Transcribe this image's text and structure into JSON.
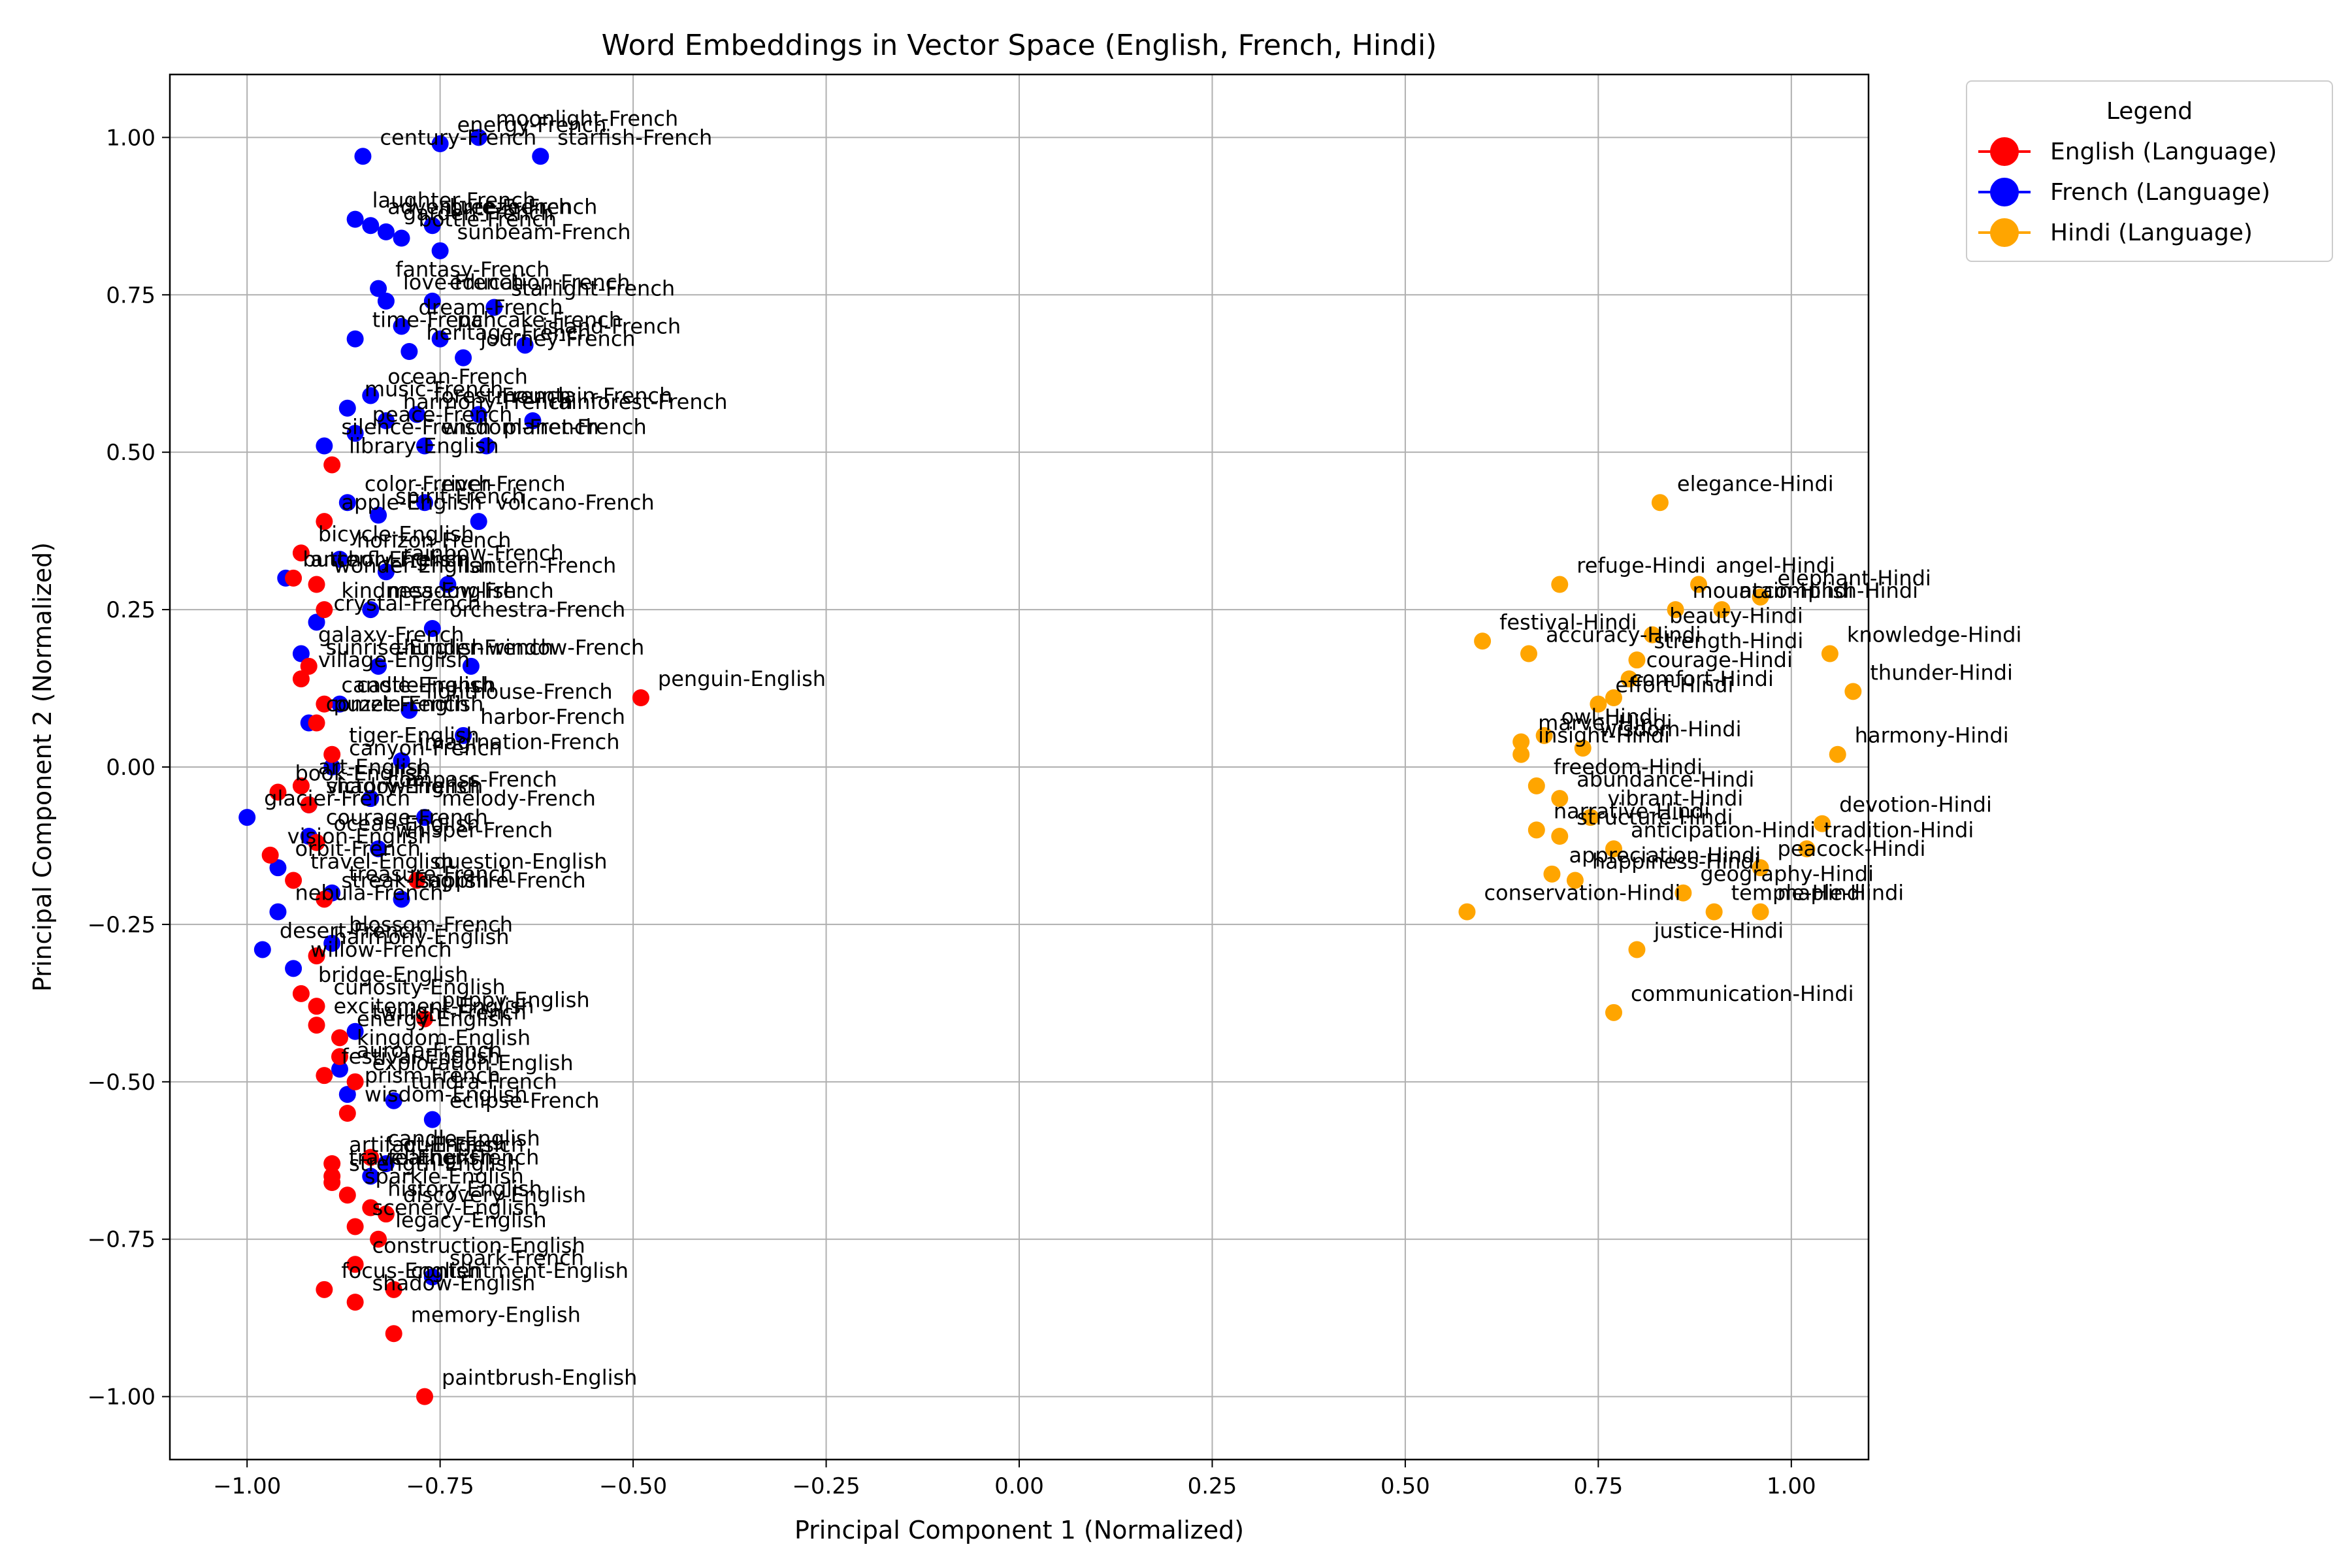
{
  "chart_data": {
    "type": "scatter",
    "title": "Word Embeddings in Vector Space (English, French, Hindi)",
    "xlabel": "Principal Component 1 (Normalized)",
    "ylabel": "Principal Component 2 (Normalized)",
    "xlim": [
      -1.1,
      1.1
    ],
    "ylim": [
      -1.1,
      1.1
    ],
    "xticks": [
      -1.0,
      -0.75,
      -0.5,
      -0.25,
      0.0,
      0.25,
      0.5,
      0.75,
      1.0
    ],
    "xtick_labels": [
      "−1.00",
      "−0.75",
      "−0.50",
      "−0.25",
      "0.00",
      "0.25",
      "0.50",
      "0.75",
      "1.00"
    ],
    "yticks": [
      -1.0,
      -0.75,
      -0.5,
      -0.25,
      0.0,
      0.25,
      0.5,
      0.75,
      1.0
    ],
    "ytick_labels": [
      "−1.00",
      "−0.75",
      "−0.50",
      "−0.25",
      "0.00",
      "0.25",
      "0.50",
      "0.75",
      "1.00"
    ],
    "grid": true,
    "legend": {
      "title": "Legend",
      "placement": "upper-right-outside",
      "entries": [
        "English (Language)",
        "French (Language)",
        "Hindi (Language)"
      ]
    },
    "series": [
      {
        "name": "French (Language)",
        "color": "#0000ff",
        "points": [
          {
            "x": -0.7,
            "y": 1.0,
            "label": "moonlight-French"
          },
          {
            "x": -0.75,
            "y": 0.99,
            "label": "energy-French"
          },
          {
            "x": -0.85,
            "y": 0.97,
            "label": "century-French"
          },
          {
            "x": -0.62,
            "y": 0.97,
            "label": "starfish-French"
          },
          {
            "x": -0.86,
            "y": 0.87,
            "label": "laughter-French"
          },
          {
            "x": -0.84,
            "y": 0.86,
            "label": "adventure-French"
          },
          {
            "x": -0.82,
            "y": 0.85,
            "label": "garden-French"
          },
          {
            "x": -0.8,
            "y": 0.84,
            "label": "bottle-French"
          },
          {
            "x": -0.76,
            "y": 0.86,
            "label": "breeze-French"
          },
          {
            "x": -0.75,
            "y": 0.82,
            "label": "sunbeam-French"
          },
          {
            "x": -0.83,
            "y": 0.76,
            "label": "fantasy-French"
          },
          {
            "x": -0.82,
            "y": 0.74,
            "label": "love-French"
          },
          {
            "x": -0.76,
            "y": 0.74,
            "label": "education-French"
          },
          {
            "x": -0.68,
            "y": 0.73,
            "label": "starlight-French"
          },
          {
            "x": -0.86,
            "y": 0.68,
            "label": "time-French"
          },
          {
            "x": -0.8,
            "y": 0.7,
            "label": "dream-French"
          },
          {
            "x": -0.75,
            "y": 0.68,
            "label": "pancake-French"
          },
          {
            "x": -0.79,
            "y": 0.66,
            "label": "heritage-French"
          },
          {
            "x": -0.72,
            "y": 0.65,
            "label": "journey-French"
          },
          {
            "x": -0.64,
            "y": 0.67,
            "label": "island-French"
          },
          {
            "x": -0.84,
            "y": 0.59,
            "label": "ocean-French"
          },
          {
            "x": -0.87,
            "y": 0.57,
            "label": "music-French"
          },
          {
            "x": -0.82,
            "y": 0.55,
            "label": "harmony-French"
          },
          {
            "x": -0.78,
            "y": 0.56,
            "label": "forest-French"
          },
          {
            "x": -0.7,
            "y": 0.56,
            "label": "mountain-French"
          },
          {
            "x": -0.63,
            "y": 0.55,
            "label": "rainforest-French"
          },
          {
            "x": -0.9,
            "y": 0.51,
            "label": "silence-French"
          },
          {
            "x": -0.86,
            "y": 0.53,
            "label": "peace-French"
          },
          {
            "x": -0.77,
            "y": 0.51,
            "label": "wisdom-French"
          },
          {
            "x": -0.69,
            "y": 0.51,
            "label": "planet-French"
          },
          {
            "x": -0.87,
            "y": 0.42,
            "label": "color-French"
          },
          {
            "x": -0.83,
            "y": 0.4,
            "label": "spirit-French"
          },
          {
            "x": -0.77,
            "y": 0.42,
            "label": "river-French"
          },
          {
            "x": -0.7,
            "y": 0.39,
            "label": "volcano-French"
          },
          {
            "x": -0.88,
            "y": 0.33,
            "label": "horizon-French"
          },
          {
            "x": -0.95,
            "y": 0.3,
            "label": "butterfly-French"
          },
          {
            "x": -0.82,
            "y": 0.31,
            "label": "rainbow-French"
          },
          {
            "x": -0.74,
            "y": 0.29,
            "label": "lantern-French"
          },
          {
            "x": -0.91,
            "y": 0.23,
            "label": "crystal-French"
          },
          {
            "x": -0.84,
            "y": 0.25,
            "label": "meadow-French"
          },
          {
            "x": -0.76,
            "y": 0.22,
            "label": "orchestra-French"
          },
          {
            "x": -0.93,
            "y": 0.18,
            "label": "galaxy-French"
          },
          {
            "x": -0.83,
            "y": 0.16,
            "label": "thunder-French"
          },
          {
            "x": -0.71,
            "y": 0.16,
            "label": "window-French"
          },
          {
            "x": -0.88,
            "y": 0.1,
            "label": "castle-French"
          },
          {
            "x": -0.92,
            "y": 0.07,
            "label": "comet-French"
          },
          {
            "x": -0.79,
            "y": 0.09,
            "label": "lighthouse-French"
          },
          {
            "x": -0.72,
            "y": 0.05,
            "label": "harbor-French"
          },
          {
            "x": -0.89,
            "y": 0.0,
            "label": "canyon-French"
          },
          {
            "x": -0.8,
            "y": 0.01,
            "label": "imagination-French"
          },
          {
            "x": -1.0,
            "y": -0.08,
            "label": "glacier-French"
          },
          {
            "x": -0.92,
            "y": -0.06,
            "label": "shadow-French"
          },
          {
            "x": -0.84,
            "y": -0.05,
            "label": "compass-French"
          },
          {
            "x": -0.77,
            "y": -0.08,
            "label": "melody-French"
          },
          {
            "x": -0.92,
            "y": -0.11,
            "label": "courage-French"
          },
          {
            "x": -0.83,
            "y": -0.13,
            "label": "whisper-French"
          },
          {
            "x": -0.96,
            "y": -0.16,
            "label": "orbit-French"
          },
          {
            "x": -0.89,
            "y": -0.2,
            "label": "treasure-French"
          },
          {
            "x": -0.96,
            "y": -0.23,
            "label": "nebula-French"
          },
          {
            "x": -0.8,
            "y": -0.21,
            "label": "sapphire-French"
          },
          {
            "x": -0.98,
            "y": -0.29,
            "label": "desert-French"
          },
          {
            "x": -0.94,
            "y": -0.32,
            "label": "willow-French"
          },
          {
            "x": -0.89,
            "y": -0.28,
            "label": "blossom-French"
          },
          {
            "x": -0.86,
            "y": -0.42,
            "label": "twilight-French"
          },
          {
            "x": -0.88,
            "y": -0.48,
            "label": "aurora-French"
          },
          {
            "x": -0.87,
            "y": -0.52,
            "label": "prism-French"
          },
          {
            "x": -0.81,
            "y": -0.53,
            "label": "tundra-French"
          },
          {
            "x": -0.76,
            "y": -0.56,
            "label": "eclipse-French"
          },
          {
            "x": -0.82,
            "y": -0.63,
            "label": "quill-French"
          },
          {
            "x": -0.84,
            "y": -0.65,
            "label": "feather-French"
          },
          {
            "x": -0.76,
            "y": -0.81,
            "label": "spark-French"
          }
        ]
      },
      {
        "name": "English (Language)",
        "color": "#ff0000",
        "points": [
          {
            "x": -0.89,
            "y": 0.48,
            "label": "library-English"
          },
          {
            "x": -0.93,
            "y": 0.34,
            "label": "bicycle-English"
          },
          {
            "x": -0.9,
            "y": 0.39,
            "label": "apple-English"
          },
          {
            "x": -0.94,
            "y": 0.3,
            "label": "anchor-English"
          },
          {
            "x": -0.91,
            "y": 0.29,
            "label": "wonder-English"
          },
          {
            "x": -0.9,
            "y": 0.25,
            "label": "kindness-English"
          },
          {
            "x": -0.92,
            "y": 0.16,
            "label": "sunrise-English"
          },
          {
            "x": -0.93,
            "y": 0.14,
            "label": "village-English"
          },
          {
            "x": -0.9,
            "y": 0.1,
            "label": "candle-English"
          },
          {
            "x": -0.91,
            "y": 0.07,
            "label": "puzzle-English"
          },
          {
            "x": -0.89,
            "y": 0.02,
            "label": "tiger-English"
          },
          {
            "x": -0.49,
            "y": 0.11,
            "label": "penguin-English"
          },
          {
            "x": -0.93,
            "y": -0.03,
            "label": "art-English"
          },
          {
            "x": -0.96,
            "y": -0.04,
            "label": "book-English"
          },
          {
            "x": -0.92,
            "y": -0.06,
            "label": "victory-English"
          },
          {
            "x": -0.91,
            "y": -0.12,
            "label": "ocean-English"
          },
          {
            "x": -0.97,
            "y": -0.14,
            "label": "vision-English"
          },
          {
            "x": -0.94,
            "y": -0.18,
            "label": "travel-English"
          },
          {
            "x": -0.9,
            "y": -0.21,
            "label": "streak-English"
          },
          {
            "x": -0.78,
            "y": -0.18,
            "label": "question-English"
          },
          {
            "x": -0.91,
            "y": -0.3,
            "label": "harmony-English"
          },
          {
            "x": -0.93,
            "y": -0.36,
            "label": "bridge-English"
          },
          {
            "x": -0.91,
            "y": -0.38,
            "label": "curiosity-English"
          },
          {
            "x": -0.91,
            "y": -0.41,
            "label": "excitement-English"
          },
          {
            "x": -0.88,
            "y": -0.43,
            "label": "energy-English"
          },
          {
            "x": -0.77,
            "y": -0.4,
            "label": "puppy-English"
          },
          {
            "x": -0.88,
            "y": -0.46,
            "label": "kingdom-English"
          },
          {
            "x": -0.9,
            "y": -0.49,
            "label": "festival-English"
          },
          {
            "x": -0.87,
            "y": -0.55,
            "label": "wisdom-English"
          },
          {
            "x": -0.86,
            "y": -0.5,
            "label": "exploration-English"
          },
          {
            "x": -0.89,
            "y": -0.63,
            "label": "artifact-English"
          },
          {
            "x": -0.84,
            "y": -0.62,
            "label": "candle-English"
          },
          {
            "x": -0.89,
            "y": -0.65,
            "label": "travel-English"
          },
          {
            "x": -0.87,
            "y": -0.68,
            "label": "sparkle-English"
          },
          {
            "x": -0.89,
            "y": -0.66,
            "label": "strength-English"
          },
          {
            "x": -0.84,
            "y": -0.7,
            "label": "history-English"
          },
          {
            "x": -0.82,
            "y": -0.71,
            "label": "discovery-English"
          },
          {
            "x": -0.86,
            "y": -0.73,
            "label": "scenery-English"
          },
          {
            "x": -0.83,
            "y": -0.75,
            "label": "legacy-English"
          },
          {
            "x": -0.86,
            "y": -0.79,
            "label": "construction-English"
          },
          {
            "x": -0.9,
            "y": -0.83,
            "label": "focus-English"
          },
          {
            "x": -0.81,
            "y": -0.83,
            "label": "contentment-English"
          },
          {
            "x": -0.86,
            "y": -0.85,
            "label": "shadow-English"
          },
          {
            "x": -0.81,
            "y": -0.9,
            "label": "memory-English"
          },
          {
            "x": -0.77,
            "y": -1.0,
            "label": "paintbrush-English"
          }
        ]
      },
      {
        "name": "Hindi (Language)",
        "color": "#ffa500",
        "points": [
          {
            "x": 0.83,
            "y": 0.42,
            "label": "elegance-Hindi"
          },
          {
            "x": 0.7,
            "y": 0.29,
            "label": "refuge-Hindi"
          },
          {
            "x": 0.88,
            "y": 0.29,
            "label": "angel-Hindi"
          },
          {
            "x": 0.96,
            "y": 0.27,
            "label": "elephant-Hindi"
          },
          {
            "x": 0.85,
            "y": 0.25,
            "label": "mountain-Hindi"
          },
          {
            "x": 0.91,
            "y": 0.25,
            "label": "accomplish-Hindi"
          },
          {
            "x": 0.6,
            "y": 0.2,
            "label": "festival-Hindi"
          },
          {
            "x": 0.66,
            "y": 0.18,
            "label": "accuracy-Hindi"
          },
          {
            "x": 0.82,
            "y": 0.21,
            "label": "beauty-Hindi"
          },
          {
            "x": 0.8,
            "y": 0.17,
            "label": "strength-Hindi"
          },
          {
            "x": 0.79,
            "y": 0.14,
            "label": "courage-Hindi"
          },
          {
            "x": 0.77,
            "y": 0.11,
            "label": "comfort-Hindi"
          },
          {
            "x": 0.75,
            "y": 0.1,
            "label": "effort-Hindi"
          },
          {
            "x": 0.65,
            "y": 0.04,
            "label": "marvel-Hindi"
          },
          {
            "x": 0.68,
            "y": 0.05,
            "label": "owl-Hindi"
          },
          {
            "x": 0.65,
            "y": 0.02,
            "label": "insight-Hindi"
          },
          {
            "x": 0.73,
            "y": 0.03,
            "label": "wisdom-Hindi"
          },
          {
            "x": 0.67,
            "y": -0.03,
            "label": "freedom-Hindi"
          },
          {
            "x": 0.7,
            "y": -0.05,
            "label": "abundance-Hindi"
          },
          {
            "x": 0.67,
            "y": -0.1,
            "label": "narrative-Hindi"
          },
          {
            "x": 0.7,
            "y": -0.11,
            "label": "structure-Hindi"
          },
          {
            "x": 0.74,
            "y": -0.08,
            "label": "vibrant-Hindi"
          },
          {
            "x": 0.77,
            "y": -0.13,
            "label": "anticipation-Hindi"
          },
          {
            "x": 0.69,
            "y": -0.17,
            "label": "appreciation-Hindi"
          },
          {
            "x": 0.72,
            "y": -0.18,
            "label": "happiness-Hindi"
          },
          {
            "x": 0.86,
            "y": -0.2,
            "label": "geography-Hindi"
          },
          {
            "x": 0.96,
            "y": -0.16,
            "label": "peacock-Hindi"
          },
          {
            "x": 0.9,
            "y": -0.23,
            "label": "temple-Hindi"
          },
          {
            "x": 0.96,
            "y": -0.23,
            "label": "maple-Hindi"
          },
          {
            "x": 0.58,
            "y": -0.23,
            "label": "conservation-Hindi"
          },
          {
            "x": 0.8,
            "y": -0.29,
            "label": "justice-Hindi"
          },
          {
            "x": 0.77,
            "y": -0.39,
            "label": "communication-Hindi"
          },
          {
            "x": 1.05,
            "y": 0.18,
            "label": "knowledge-Hindi"
          },
          {
            "x": 1.08,
            "y": 0.12,
            "label": "thunder-Hindi"
          },
          {
            "x": 1.06,
            "y": 0.02,
            "label": "harmony-Hindi"
          },
          {
            "x": 1.04,
            "y": -0.09,
            "label": "devotion-Hindi"
          },
          {
            "x": 1.02,
            "y": -0.13,
            "label": "tradition-Hindi"
          }
        ]
      }
    ]
  }
}
